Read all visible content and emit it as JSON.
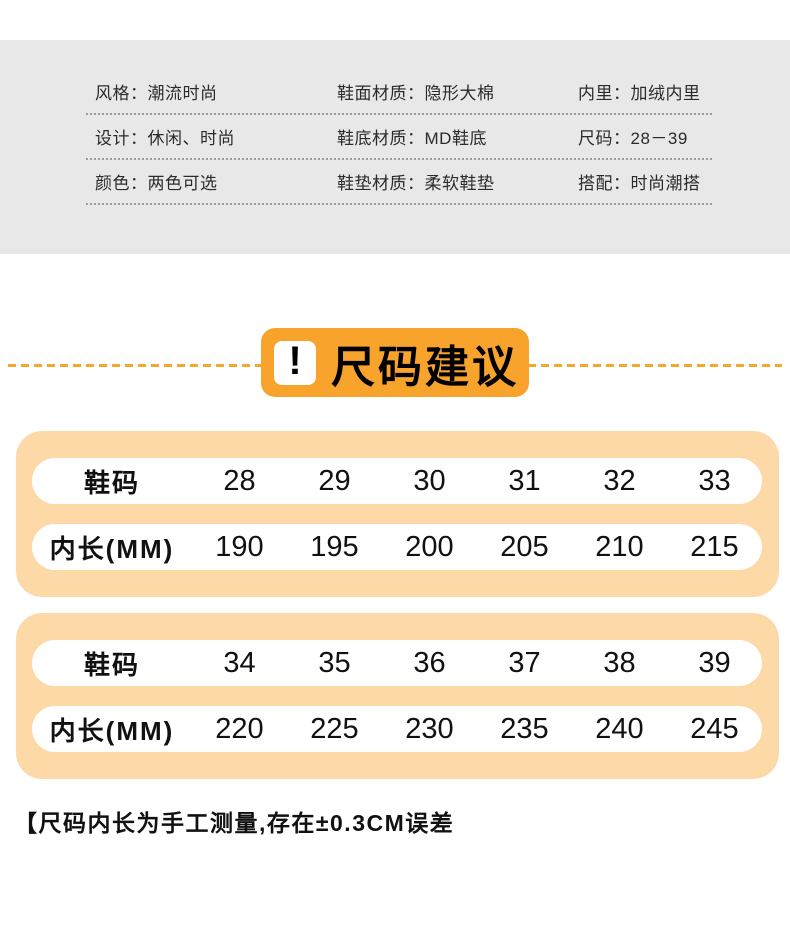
{
  "colors": {
    "band_bg": "#e8e8e8",
    "accent_orange": "#f8a32b",
    "table_bg": "#fdd9a7",
    "row_bg": "#ffffff",
    "separator_dotted": "#9b9b9b",
    "dashed_line": "#f6a62b",
    "text": "#2b2b2b"
  },
  "specs": {
    "rows": [
      {
        "cells": [
          "风格：潮流时尚",
          "鞋面材质：隐形大棉",
          "内里：加绒内里"
        ]
      },
      {
        "cells": [
          "设计：休闲、时尚",
          "鞋底材质：MD鞋底",
          "尺码：28－39"
        ]
      },
      {
        "cells": [
          "颜色：两色可选",
          "鞋垫材质：柔软鞋垫",
          "搭配：时尚潮搭"
        ]
      }
    ]
  },
  "banner": {
    "icon": "!",
    "title": "尺码建议"
  },
  "size_tables": [
    {
      "rows": [
        {
          "header": "鞋码",
          "values": [
            "28",
            "29",
            "30",
            "31",
            "32",
            "33"
          ]
        },
        {
          "header": "内长(MM)",
          "values": [
            "190",
            "195",
            "200",
            "205",
            "210",
            "215"
          ]
        }
      ]
    },
    {
      "rows": [
        {
          "header": "鞋码",
          "values": [
            "34",
            "35",
            "36",
            "37",
            "38",
            "39"
          ]
        },
        {
          "header": "内长(MM)",
          "values": [
            "220",
            "225",
            "230",
            "235",
            "240",
            "245"
          ]
        }
      ]
    }
  ],
  "note": "【尺码内长为手工测量,存在±0.3CM误差"
}
